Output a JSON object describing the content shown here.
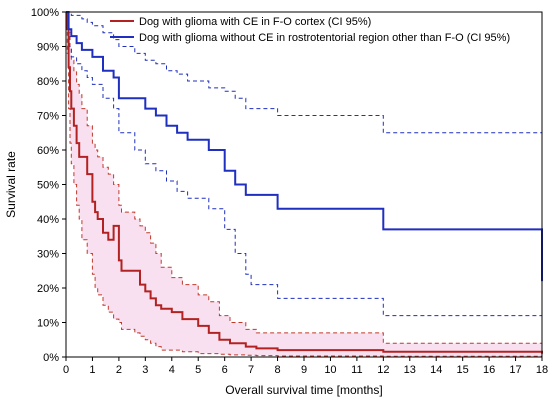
{
  "chart_data": {
    "type": "line",
    "step": true,
    "title": "",
    "xlabel": "Overall survival time [months]",
    "ylabel": "Survival rate",
    "xlim": [
      0,
      18
    ],
    "ylim": [
      0,
      1
    ],
    "x_ticks": [
      0,
      1,
      2,
      3,
      4,
      5,
      6,
      7,
      8,
      9,
      10,
      11,
      12,
      13,
      14,
      15,
      16,
      17,
      18
    ],
    "x_tick_labels": [
      "0",
      "1",
      "2",
      "3",
      "4",
      "5",
      "6",
      "7",
      "8",
      "9",
      "10",
      "11",
      "12",
      "13",
      "14",
      "15",
      "16",
      "17",
      "18"
    ],
    "y_ticks": [
      0,
      0.1,
      0.2,
      0.3,
      0.4,
      0.5,
      0.6,
      0.7,
      0.8,
      0.9,
      1.0
    ],
    "y_tick_labels": [
      "0%",
      "10%",
      "20%",
      "30%",
      "40%",
      "50%",
      "60%",
      "70%",
      "80%",
      "90%",
      "100%"
    ],
    "grid": false,
    "legend_position": "top-right",
    "series": [
      {
        "name": "Dog with glioma with CE in F-O cortex (CI 95%)",
        "color": "#b22222",
        "ci_color": "#c0392b",
        "band_color": "#f3c6e4",
        "x": [
          0,
          0.05,
          0.1,
          0.15,
          0.2,
          0.3,
          0.4,
          0.5,
          0.6,
          0.8,
          1.0,
          1.1,
          1.2,
          1.4,
          1.6,
          1.8,
          2.0,
          2.1,
          2.6,
          2.8,
          3.0,
          3.2,
          3.4,
          3.6,
          4.0,
          4.4,
          5.0,
          5.4,
          5.8,
          6.2,
          6.8,
          7.2,
          8.0,
          12.0,
          18.0
        ],
        "y": [
          1.0,
          0.95,
          0.84,
          0.77,
          0.72,
          0.67,
          0.62,
          0.58,
          0.58,
          0.53,
          0.45,
          0.42,
          0.4,
          0.36,
          0.34,
          0.38,
          0.28,
          0.25,
          0.25,
          0.21,
          0.19,
          0.17,
          0.15,
          0.14,
          0.13,
          0.11,
          0.09,
          0.07,
          0.05,
          0.04,
          0.03,
          0.025,
          0.02,
          0.015,
          0.01
        ],
        "lower": [
          1.0,
          0.88,
          0.72,
          0.62,
          0.56,
          0.5,
          0.44,
          0.4,
          0.34,
          0.3,
          0.24,
          0.2,
          0.18,
          0.15,
          0.13,
          0.11,
          0.1,
          0.08,
          0.07,
          0.06,
          0.05,
          0.04,
          0.03,
          0.02,
          0.02,
          0.015,
          0.01,
          0.01,
          0.008,
          0.006,
          0.005,
          0.004,
          0.003,
          0.002,
          0.002
        ],
        "upper": [
          1.0,
          0.99,
          0.94,
          0.9,
          0.86,
          0.83,
          0.79,
          0.76,
          0.72,
          0.67,
          0.62,
          0.6,
          0.58,
          0.55,
          0.53,
          0.5,
          0.44,
          0.42,
          0.4,
          0.38,
          0.36,
          0.33,
          0.3,
          0.26,
          0.23,
          0.21,
          0.18,
          0.16,
          0.12,
          0.1,
          0.08,
          0.07,
          0.07,
          0.04,
          0.04
        ]
      },
      {
        "name": "Dog with glioma without CE in rostrotentorial region other than F-O (CI 95%)",
        "color": "#1f2fbf",
        "ci_color": "#1f2fbf",
        "x": [
          0,
          0.1,
          0.2,
          0.4,
          0.6,
          0.8,
          1.0,
          1.4,
          1.8,
          2.0,
          2.6,
          3.0,
          3.4,
          3.8,
          4.2,
          4.6,
          5.4,
          6.0,
          6.4,
          6.8,
          7.0,
          8.0,
          12.0,
          18.0
        ],
        "y": [
          1.0,
          0.95,
          0.93,
          0.91,
          0.89,
          0.89,
          0.87,
          0.83,
          0.81,
          0.75,
          0.75,
          0.72,
          0.7,
          0.67,
          0.65,
          0.63,
          0.6,
          0.54,
          0.5,
          0.47,
          0.47,
          0.43,
          0.37,
          0.22
        ],
        "lower": [
          1.0,
          0.9,
          0.87,
          0.85,
          0.83,
          0.81,
          0.79,
          0.75,
          0.72,
          0.65,
          0.6,
          0.56,
          0.54,
          0.51,
          0.48,
          0.46,
          0.43,
          0.37,
          0.3,
          0.24,
          0.21,
          0.17,
          0.12,
          0.09
        ],
        "upper": [
          1.0,
          1.0,
          0.99,
          0.99,
          0.98,
          0.97,
          0.96,
          0.94,
          0.92,
          0.9,
          0.88,
          0.86,
          0.85,
          0.83,
          0.82,
          0.8,
          0.78,
          0.77,
          0.75,
          0.72,
          0.72,
          0.7,
          0.65,
          0.5
        ]
      }
    ]
  }
}
